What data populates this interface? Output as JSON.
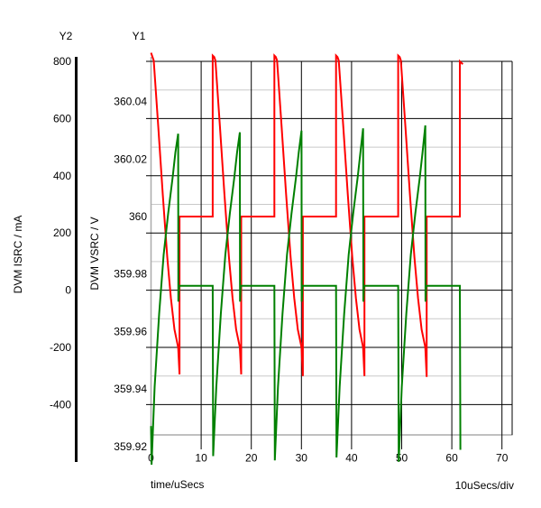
{
  "header": {
    "y2_title": "Y2",
    "y1_title": "Y1"
  },
  "chart_data": {
    "type": "line",
    "grid": {
      "major_color": "#000000",
      "minor_color": "#c9c9c9",
      "axis_color": "#ababab",
      "y2_axis_color": "#000000",
      "minor_horizontal": true,
      "minor_vertical": false
    },
    "x_axis": {
      "label": "time/uSecs",
      "scale_label": "10uSecs/div",
      "ticks": [
        "0",
        "10",
        "20",
        "30",
        "40",
        "50",
        "60",
        "70"
      ],
      "tick_values": [
        0,
        10,
        20,
        30,
        40,
        50,
        60,
        70
      ],
      "range": [
        0,
        72
      ]
    },
    "y2_axis": {
      "label": "DVM ISRC / mA",
      "units": "mA",
      "ticks": [
        "800",
        "600",
        "400",
        "200",
        "0",
        "-200",
        "-400"
      ],
      "tick_values": [
        800,
        600,
        400,
        200,
        0,
        -200,
        -400
      ],
      "range": [
        -615,
        815
      ]
    },
    "y1_axis": {
      "label": "DVM VSRC / V",
      "units": "V",
      "ticks": [
        "360.04",
        "360.02",
        "360",
        "359.98",
        "359.96",
        "359.94",
        "359.92"
      ],
      "tick_values": [
        360.04,
        360.02,
        360,
        359.98,
        359.96,
        359.94,
        359.92
      ],
      "range": [
        359.916,
        360.056
      ]
    },
    "series": [
      {
        "name": "DVM VSRC",
        "axis": "y1",
        "color": "#ff0000",
        "points": [
          [
            0,
            360.057
          ],
          [
            0.54,
            360.0543
          ],
          [
            1.44,
            360.0314
          ],
          [
            2.34,
            360.0078
          ],
          [
            3.24,
            359.9859
          ],
          [
            3.96,
            359.9717
          ],
          [
            4.68,
            359.9607
          ],
          [
            5.41,
            359.9545
          ],
          [
            5.68,
            359.9451
          ],
          [
            5.68,
            360.0
          ],
          [
            12.3,
            360.0
          ],
          [
            12.3,
            360.056
          ],
          [
            12.6,
            360.0555
          ],
          [
            12.84,
            360.0543
          ],
          [
            13.74,
            360.0314
          ],
          [
            14.64,
            360.0078
          ],
          [
            15.54,
            359.9859
          ],
          [
            16.26,
            359.9717
          ],
          [
            16.98,
            359.9607
          ],
          [
            17.71,
            359.9545
          ],
          [
            17.98,
            359.9451
          ],
          [
            17.98,
            360.0
          ],
          [
            24.6,
            360.0
          ],
          [
            24.6,
            360.056
          ],
          [
            24.9,
            360.0555
          ],
          [
            25.14,
            360.0543
          ],
          [
            26.04,
            360.0314
          ],
          [
            26.94,
            360.0078
          ],
          [
            27.84,
            359.9859
          ],
          [
            28.56,
            359.9717
          ],
          [
            29.28,
            359.9607
          ],
          [
            30.01,
            359.9545
          ],
          [
            30.28,
            359.9445
          ],
          [
            30.28,
            360.0
          ],
          [
            36.9,
            360.0
          ],
          [
            36.9,
            360.056
          ],
          [
            37.2,
            360.0555
          ],
          [
            37.44,
            360.0543
          ],
          [
            38.34,
            360.0314
          ],
          [
            39.24,
            360.0078
          ],
          [
            40.14,
            359.9859
          ],
          [
            40.86,
            359.9717
          ],
          [
            41.58,
            359.9607
          ],
          [
            42.31,
            359.9545
          ],
          [
            42.58,
            359.9445
          ],
          [
            42.58,
            360.0
          ],
          [
            49.3,
            360.0
          ],
          [
            49.3,
            360.056
          ],
          [
            49.6,
            360.0555
          ],
          [
            49.84,
            360.0543
          ],
          [
            50.74,
            360.0314
          ],
          [
            51.64,
            360.0078
          ],
          [
            52.54,
            359.9859
          ],
          [
            53.26,
            359.9717
          ],
          [
            53.98,
            359.9607
          ],
          [
            54.71,
            359.9545
          ],
          [
            54.98,
            359.9442
          ],
          [
            54.98,
            360.0
          ],
          [
            61.6,
            360.0
          ],
          [
            61.6,
            360.054
          ],
          [
            62.2,
            360.053
          ]
        ]
      },
      {
        "name": "DVM ISRC",
        "axis": "y2",
        "color": "#008000",
        "points": [
          [
            0,
            -475
          ],
          [
            0.1,
            -610
          ],
          [
            0.72,
            -338
          ],
          [
            1.62,
            -83
          ],
          [
            2.52,
            124
          ],
          [
            3.42,
            268
          ],
          [
            4.32,
            395
          ],
          [
            4.86,
            481
          ],
          [
            5.41,
            547
          ],
          [
            5.45,
            -40
          ],
          [
            5.6,
            15
          ],
          [
            12.3,
            15
          ],
          [
            12.4,
            -580
          ],
          [
            13.02,
            -338
          ],
          [
            13.92,
            -83
          ],
          [
            14.82,
            124
          ],
          [
            15.72,
            268
          ],
          [
            16.62,
            395
          ],
          [
            17.16,
            481
          ],
          [
            17.71,
            552
          ],
          [
            17.75,
            -40
          ],
          [
            17.9,
            15
          ],
          [
            24.6,
            15
          ],
          [
            24.7,
            -595
          ],
          [
            25.32,
            -338
          ],
          [
            26.22,
            -83
          ],
          [
            27.12,
            124
          ],
          [
            28.02,
            268
          ],
          [
            28.92,
            395
          ],
          [
            29.46,
            481
          ],
          [
            30.01,
            558
          ],
          [
            30.05,
            -40
          ],
          [
            30.2,
            15
          ],
          [
            36.9,
            15
          ],
          [
            37.0,
            -585
          ],
          [
            37.62,
            -338
          ],
          [
            38.52,
            -83
          ],
          [
            39.42,
            124
          ],
          [
            40.32,
            268
          ],
          [
            41.22,
            395
          ],
          [
            41.76,
            481
          ],
          [
            42.31,
            566
          ],
          [
            42.35,
            -40
          ],
          [
            42.5,
            15
          ],
          [
            49.3,
            15
          ],
          [
            49.4,
            -600
          ],
          [
            50.02,
            -338
          ],
          [
            50.92,
            -83
          ],
          [
            51.82,
            124
          ],
          [
            52.72,
            268
          ],
          [
            53.62,
            395
          ],
          [
            54.16,
            481
          ],
          [
            54.71,
            576
          ],
          [
            54.75,
            -40
          ],
          [
            54.9,
            15
          ],
          [
            61.6,
            15
          ],
          [
            61.7,
            -558
          ]
        ]
      }
    ]
  }
}
